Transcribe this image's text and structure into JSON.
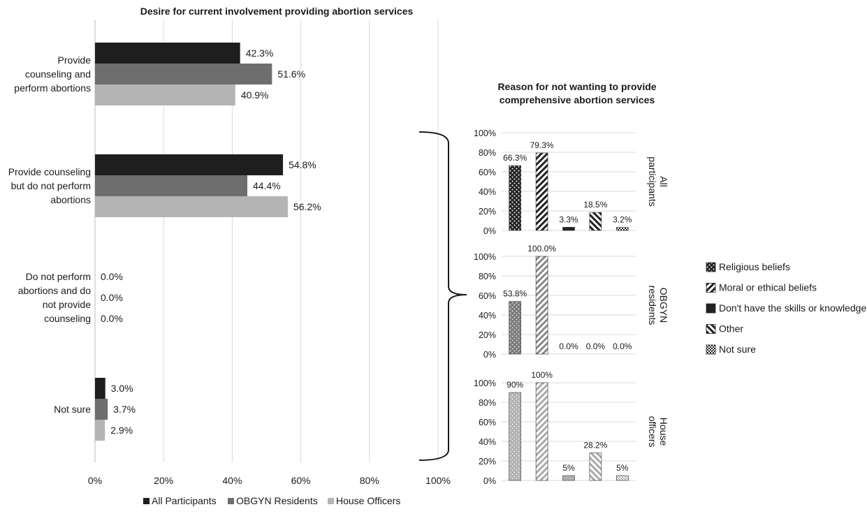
{
  "colors": {
    "all_participants": "#1e1e1e",
    "obgyn_residents": "#6e6e6e",
    "house_officers": "#b4b4b4",
    "grid": "#d9d9d9",
    "text": "#1a1a1a"
  },
  "chart_data": [
    {
      "type": "bar",
      "orientation": "horizontal",
      "title": "Desire for current involvement providing abortion services",
      "categories": [
        [
          "Provide",
          "counseling and",
          "perform abortions"
        ],
        [
          "Provide counseling",
          "but do not perform",
          "abortions"
        ],
        [
          "Do not perform",
          "abortions and do",
          "not provide",
          "counseling"
        ],
        [
          "Not sure"
        ]
      ],
      "series": [
        {
          "name": "All Participants",
          "values": [
            42.3,
            54.8,
            0.0,
            3.0
          ],
          "labels": [
            "42.3%",
            "54.8%",
            "0.0%",
            "3.0%"
          ]
        },
        {
          "name": "OBGYN Residents",
          "values": [
            51.6,
            44.4,
            0.0,
            3.7
          ],
          "labels": [
            "51.6%",
            "44.4%",
            "0.0%",
            "3.7%"
          ]
        },
        {
          "name": "House Officers",
          "values": [
            40.9,
            56.2,
            0.0,
            2.9
          ],
          "labels": [
            "40.9%",
            "56.2%",
            "0.0%",
            "2.9%"
          ]
        }
      ],
      "x_ticks": [
        "0%",
        "20%",
        "40%",
        "60%",
        "80%",
        "100%"
      ],
      "xlim": [
        0,
        100
      ],
      "grid": true,
      "legend_position": "bottom"
    },
    {
      "type": "bar",
      "title": "Reason for not wanting to provide comprehensive abortion services",
      "categories": [
        "Religious beliefs",
        "Moral or ethical beliefs",
        "Don't have the skills or knowledge",
        "Other",
        "Not sure"
      ],
      "y_ticks": [
        "0%",
        "20%",
        "40%",
        "60%",
        "80%",
        "100%"
      ],
      "ylim": [
        0,
        100
      ],
      "grid": true,
      "legend_position": "right",
      "panels": [
        {
          "label": [
            "All",
            "participants"
          ],
          "values": [
            66.3,
            79.3,
            3.3,
            18.5,
            3.2
          ],
          "labels": [
            "66.3%",
            "79.3%",
            "3.3%",
            "18.5%",
            "3.2%"
          ]
        },
        {
          "label": [
            "OBGYN",
            "residents"
          ],
          "values": [
            53.8,
            100.0,
            0.0,
            0.0,
            0.0
          ],
          "labels": [
            "53.8%",
            "100.0%",
            "0.0%",
            "0.0%",
            "0.0%"
          ]
        },
        {
          "label": [
            "House",
            "officers"
          ],
          "values": [
            90,
            100,
            5,
            28.2,
            5
          ],
          "labels": [
            "90%",
            "100%",
            "5%",
            "28.2%",
            "5%"
          ]
        }
      ],
      "legend": [
        {
          "name": "Religious beliefs",
          "pattern": "dots"
        },
        {
          "name": "Moral or ethical beliefs",
          "pattern": "diagonal-up"
        },
        {
          "name": "Don't have the skills or knowledge",
          "pattern": "solid"
        },
        {
          "name": "Other",
          "pattern": "diagonal-down"
        },
        {
          "name": "Not sure",
          "pattern": "checker"
        }
      ]
    }
  ]
}
